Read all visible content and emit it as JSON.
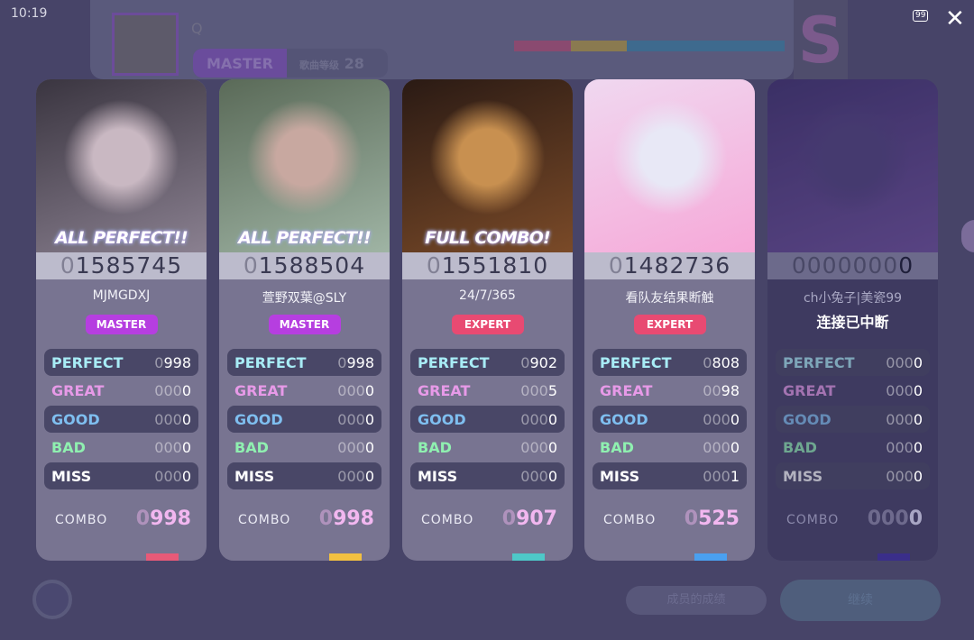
{
  "status": {
    "time": "10:19",
    "battery": "99"
  },
  "background": {
    "song_title": "Q",
    "difficulty": "MASTER",
    "level_label": "歌曲等级",
    "level": "28",
    "rank": "S",
    "buttons": {
      "member_results": "成员的成绩",
      "continue": "继续"
    }
  },
  "colors": {
    "master": "#b63ee0",
    "expert": "#e84a72",
    "perfect": "#a8ecf6",
    "great": "#e79ae8",
    "good": "#7fbff0",
    "bad": "#8ff0b0",
    "miss": "#ffffff"
  },
  "labels": {
    "perfect": "PERFECT",
    "great": "GREAT",
    "good": "GOOD",
    "bad": "BAD",
    "miss": "MISS",
    "combo": "COMBO"
  },
  "players": [
    {
      "name": "MJMGDXJ",
      "result": "ALL PERFECT!!",
      "score": "01585745",
      "difficulty": "MASTER",
      "perfect": "0998",
      "great": "0000",
      "good": "0000",
      "bad": "0000",
      "miss": "0000",
      "combo": "0998",
      "bar_color": "#e85a78",
      "art": [
        "#3a3540",
        "#8a8090",
        "#c9b8c2"
      ]
    },
    {
      "name": "萱野双葉@SLY",
      "result": "ALL PERFECT!!",
      "score": "01588504",
      "difficulty": "MASTER",
      "perfect": "0998",
      "great": "0000",
      "good": "0000",
      "bad": "0000",
      "miss": "0000",
      "combo": "0998",
      "bar_color": "#f2c040",
      "art": [
        "#5a6a58",
        "#9fb4a4",
        "#c8a8a0"
      ]
    },
    {
      "name": "24/7/365",
      "result": "FULL COMBO!",
      "score": "01551810",
      "difficulty": "EXPERT",
      "perfect": "0902",
      "great": "0005",
      "good": "0000",
      "bad": "0000",
      "miss": "0000",
      "combo": "0907",
      "bar_color": "#4ec8c8",
      "art": [
        "#2a1a14",
        "#7a4a28",
        "#c89050"
      ]
    },
    {
      "name": "看队友结果断触",
      "result": "",
      "score": "01482736",
      "difficulty": "EXPERT",
      "perfect": "0808",
      "great": "0098",
      "good": "0000",
      "bad": "0000",
      "miss": "0001",
      "combo": "0525",
      "bar_color": "#4aa0f0",
      "art": [
        "#f0d8f0",
        "#f6a8d8",
        "#e8e8f6"
      ]
    },
    {
      "name": "ch小兔子|美瓷99",
      "result": "",
      "score": "00000000",
      "difficulty": "",
      "disconnected": "连接已中断",
      "perfect": "0000",
      "great": "0000",
      "good": "0000",
      "bad": "0000",
      "miss": "0000",
      "combo": "0000",
      "bar_color": "#3a2e8a",
      "art": [
        "#3a2a6a",
        "#6a4a9a",
        "#4a3a7a"
      ]
    }
  ]
}
